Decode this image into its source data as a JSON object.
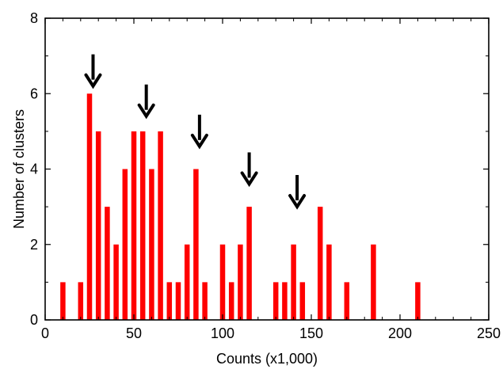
{
  "chart_data": {
    "type": "bar",
    "title": "",
    "xlabel": "Counts (x1,000)",
    "ylabel": "Number of clusters",
    "xlim": [
      0,
      250
    ],
    "ylim": [
      0,
      8
    ],
    "xticks": [
      0,
      50,
      100,
      150,
      200,
      250
    ],
    "yticks": [
      0,
      2,
      4,
      6,
      8
    ],
    "grid": false,
    "bar_color": "#ff0000",
    "arrow_color": "#000000",
    "x": [
      10,
      20,
      25,
      30,
      35,
      40,
      45,
      50,
      55,
      60,
      65,
      70,
      75,
      80,
      85,
      90,
      100,
      105,
      110,
      115,
      130,
      135,
      140,
      145,
      155,
      160,
      170,
      185,
      210
    ],
    "values": [
      1,
      1,
      6,
      5,
      3,
      2,
      4,
      5,
      5,
      4,
      5,
      1,
      1,
      2,
      4,
      1,
      2,
      1,
      2,
      3,
      1,
      1,
      2,
      1,
      3,
      2,
      1,
      2,
      1
    ],
    "peak_arrows": [
      {
        "x": 27,
        "y": 7.0
      },
      {
        "x": 57,
        "y": 6.2
      },
      {
        "x": 87,
        "y": 5.4
      },
      {
        "x": 115,
        "y": 4.4
      },
      {
        "x": 142,
        "y": 3.8
      }
    ]
  }
}
